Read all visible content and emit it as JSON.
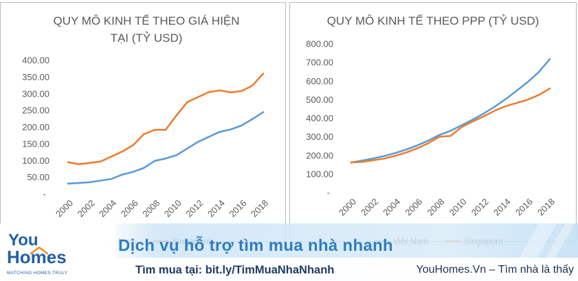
{
  "chart_data": [
    {
      "type": "line",
      "title": "QUY MÔ KINH TẾ THEO GIÁ HIỆN TẠI (TỶ USD)",
      "x": [
        2000,
        2001,
        2002,
        2003,
        2004,
        2005,
        2006,
        2007,
        2008,
        2009,
        2010,
        2011,
        2012,
        2013,
        2014,
        2015,
        2016,
        2017,
        2018
      ],
      "xtick_labels": [
        "2000",
        "2002",
        "2004",
        "2006",
        "2008",
        "2010",
        "2012",
        "2014",
        "2016",
        "2018"
      ],
      "ylim": [
        0,
        400
      ],
      "ytick_labels": [
        "400.00",
        "350.00",
        "300.00",
        "250.00",
        "200.00",
        "150.00",
        "100.00",
        "50.00",
        "-"
      ],
      "grid": false,
      "legend": "bottom",
      "series": [
        {
          "name": "Việt Nam",
          "color": "#5b9bd5",
          "values": [
            31,
            33,
            35,
            40,
            45,
            58,
            66,
            78,
            99,
            106,
            116,
            136,
            156,
            171,
            186,
            193,
            205,
            224,
            245
          ]
        },
        {
          "name": "Singapore",
          "color": "#ed7d31",
          "values": [
            95,
            89,
            93,
            97,
            112,
            127,
            146,
            179,
            192,
            192,
            235,
            275,
            290,
            305,
            310,
            304,
            308,
            324,
            360
          ]
        }
      ]
    },
    {
      "type": "line",
      "title": "QUY MÔ KINH TẾ THEO PPP (TỶ USD)",
      "x": [
        2000,
        2001,
        2002,
        2003,
        2004,
        2005,
        2006,
        2007,
        2008,
        2009,
        2010,
        2011,
        2012,
        2013,
        2014,
        2015,
        2016,
        2017,
        2018
      ],
      "xtick_labels": [
        "2000",
        "2002",
        "2004",
        "2006",
        "2008",
        "2010",
        "2012",
        "2014",
        "2016",
        "2018"
      ],
      "ylim": [
        0,
        800
      ],
      "ytick_labels": [
        "800.00",
        "700.00",
        "600.00",
        "500.00",
        "400.00",
        "300.00",
        "200.00",
        "100.00",
        "-"
      ],
      "grid": false,
      "legend": "bottom",
      "series": [
        {
          "name": "Việt Nam",
          "color": "#5b9bd5",
          "values": [
            162,
            172,
            184,
            197,
            213,
            232,
            254,
            280,
            310,
            332,
            362,
            392,
            425,
            462,
            503,
            548,
            595,
            648,
            718
          ]
        },
        {
          "name": "Singapore",
          "color": "#ed7d31",
          "values": [
            162,
            165,
            174,
            183,
            198,
            216,
            238,
            266,
            300,
            305,
            352,
            382,
            410,
            440,
            465,
            482,
            500,
            525,
            560
          ]
        }
      ]
    }
  ],
  "banner": {
    "logo": {
      "word1": "You",
      "word2": "Homes",
      "tagline": "MATCHING HOMES TRULY",
      "roof_color": "#f08a24"
    },
    "headline": "Dịch vụ hỗ trợ tìm mua nhà nhanh",
    "cta": "Tìm mua tại: bit.ly/TimMuaNhaNhanh",
    "slogan": "YouHomes.Vn – Tìm nhà là thấy"
  }
}
